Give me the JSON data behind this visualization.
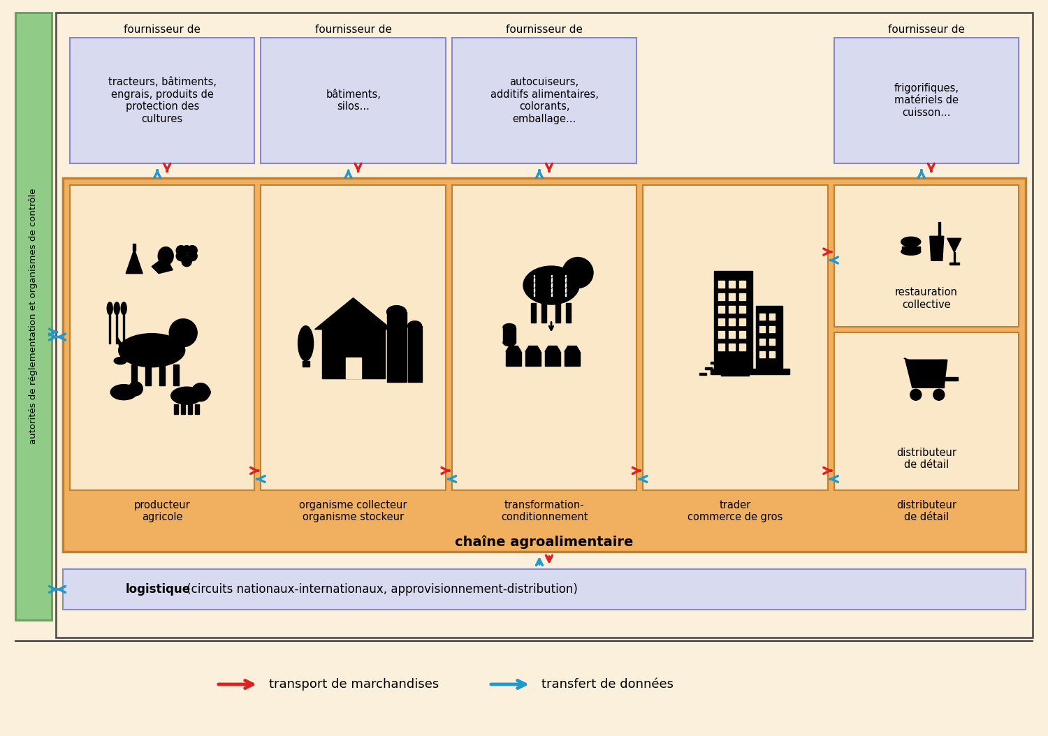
{
  "bg_color": "#faf0dc",
  "outer_border_color": "#555555",
  "chain_bg": "#f0b060",
  "chain_border": "#c08030",
  "cell_bg": "#fae8c8",
  "cell_border": "#c08030",
  "supplier_bg": "#d8daf0",
  "supplier_border": "#8888cc",
  "logistic_bg": "#d8daf0",
  "logistic_border": "#8888cc",
  "authority_bg": "#90cc88",
  "authority_border": "#60a058",
  "red_arrow": "#dd2222",
  "blue_arrow": "#2299cc",
  "chain_label": "chaîne agroalimentaire",
  "authority_label": "autorités de réglementation et organismes de contrôle",
  "logistic_label_bold": "logistique",
  "logistic_label_rest": " (circuits nationaux-internationaux, approvisionnement-distribution)",
  "legend_transport": "transport de marchandises",
  "legend_data": "transfert de données",
  "suppliers": [
    {
      "label": "fournisseur de",
      "content": "tracteurs, bâtiments,\nengrais, produits de\nprotection des\ncultures",
      "col": 0
    },
    {
      "label": "fournisseur de",
      "content": "bâtiments,\nsilos...",
      "col": 1
    },
    {
      "label": "fournisseur de",
      "content": "autocuiseurs,\nadditifs alimentaires,\ncolorants,\nemballage...",
      "col": 2
    },
    {
      "label": "fournisseur de",
      "content": "frigorifiques,\nmatériels de\ncuisson...",
      "col": 4
    }
  ],
  "chain_nodes": [
    {
      "label": "producteur\nagricole"
    },
    {
      "label": "organisme collecteur\norganisme stockeur"
    },
    {
      "label": "transformation-\nconditionnement"
    },
    {
      "label": "trader\ncommerce de gros"
    },
    {
      "label": "distributeur\nde détail"
    }
  ],
  "right_sub_labels": [
    "restauration\ncollective",
    "distributeur\nde détail"
  ]
}
